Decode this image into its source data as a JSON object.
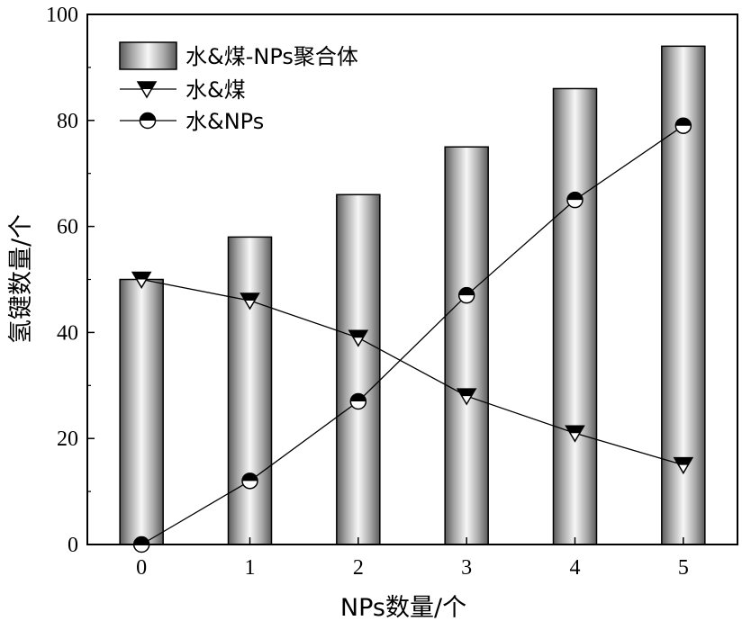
{
  "chart_data": {
    "type": "bar",
    "categories": [
      "0",
      "1",
      "2",
      "3",
      "4",
      "5"
    ],
    "xlabel": "NPs数量/个",
    "ylabel": "氢键数量/个",
    "ylim": [
      0,
      100
    ],
    "yticks": [
      "0",
      "20",
      "40",
      "60",
      "80",
      "100"
    ],
    "grid": false,
    "legend_position": "top-left",
    "series": [
      {
        "name": "水&煤-NPs聚合体",
        "kind": "bar",
        "values": [
          50,
          58,
          66,
          75,
          86,
          94
        ]
      },
      {
        "name": "水&煤",
        "kind": "line",
        "marker": "triangle-down",
        "values": [
          50,
          46,
          39,
          28,
          21,
          15
        ]
      },
      {
        "name": "水&NPs",
        "kind": "line",
        "marker": "half-circle",
        "values": [
          0,
          12,
          27,
          47,
          65,
          79
        ]
      }
    ]
  }
}
